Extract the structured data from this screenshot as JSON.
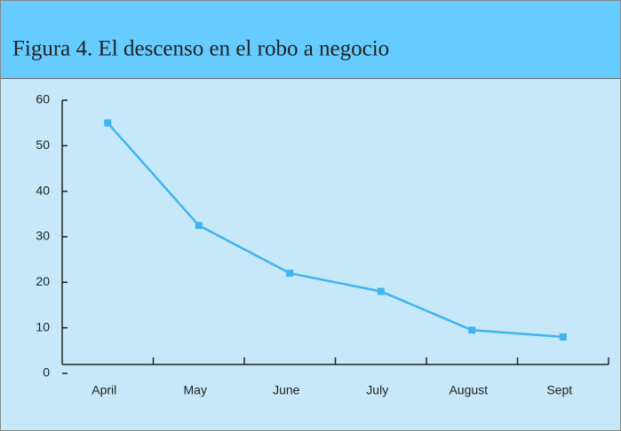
{
  "chart_data": {
    "type": "line",
    "title": "Figura 4. El descenso en el robo a negocio",
    "categories": [
      "April",
      "May",
      "June",
      "July",
      "August",
      "Sept"
    ],
    "values": [
      55,
      32.5,
      22,
      18,
      9.5,
      8
    ],
    "color": "#3fb4f0",
    "ylim": [
      0,
      60
    ],
    "yticks": [
      0,
      10,
      20,
      30,
      40,
      50,
      60
    ]
  }
}
